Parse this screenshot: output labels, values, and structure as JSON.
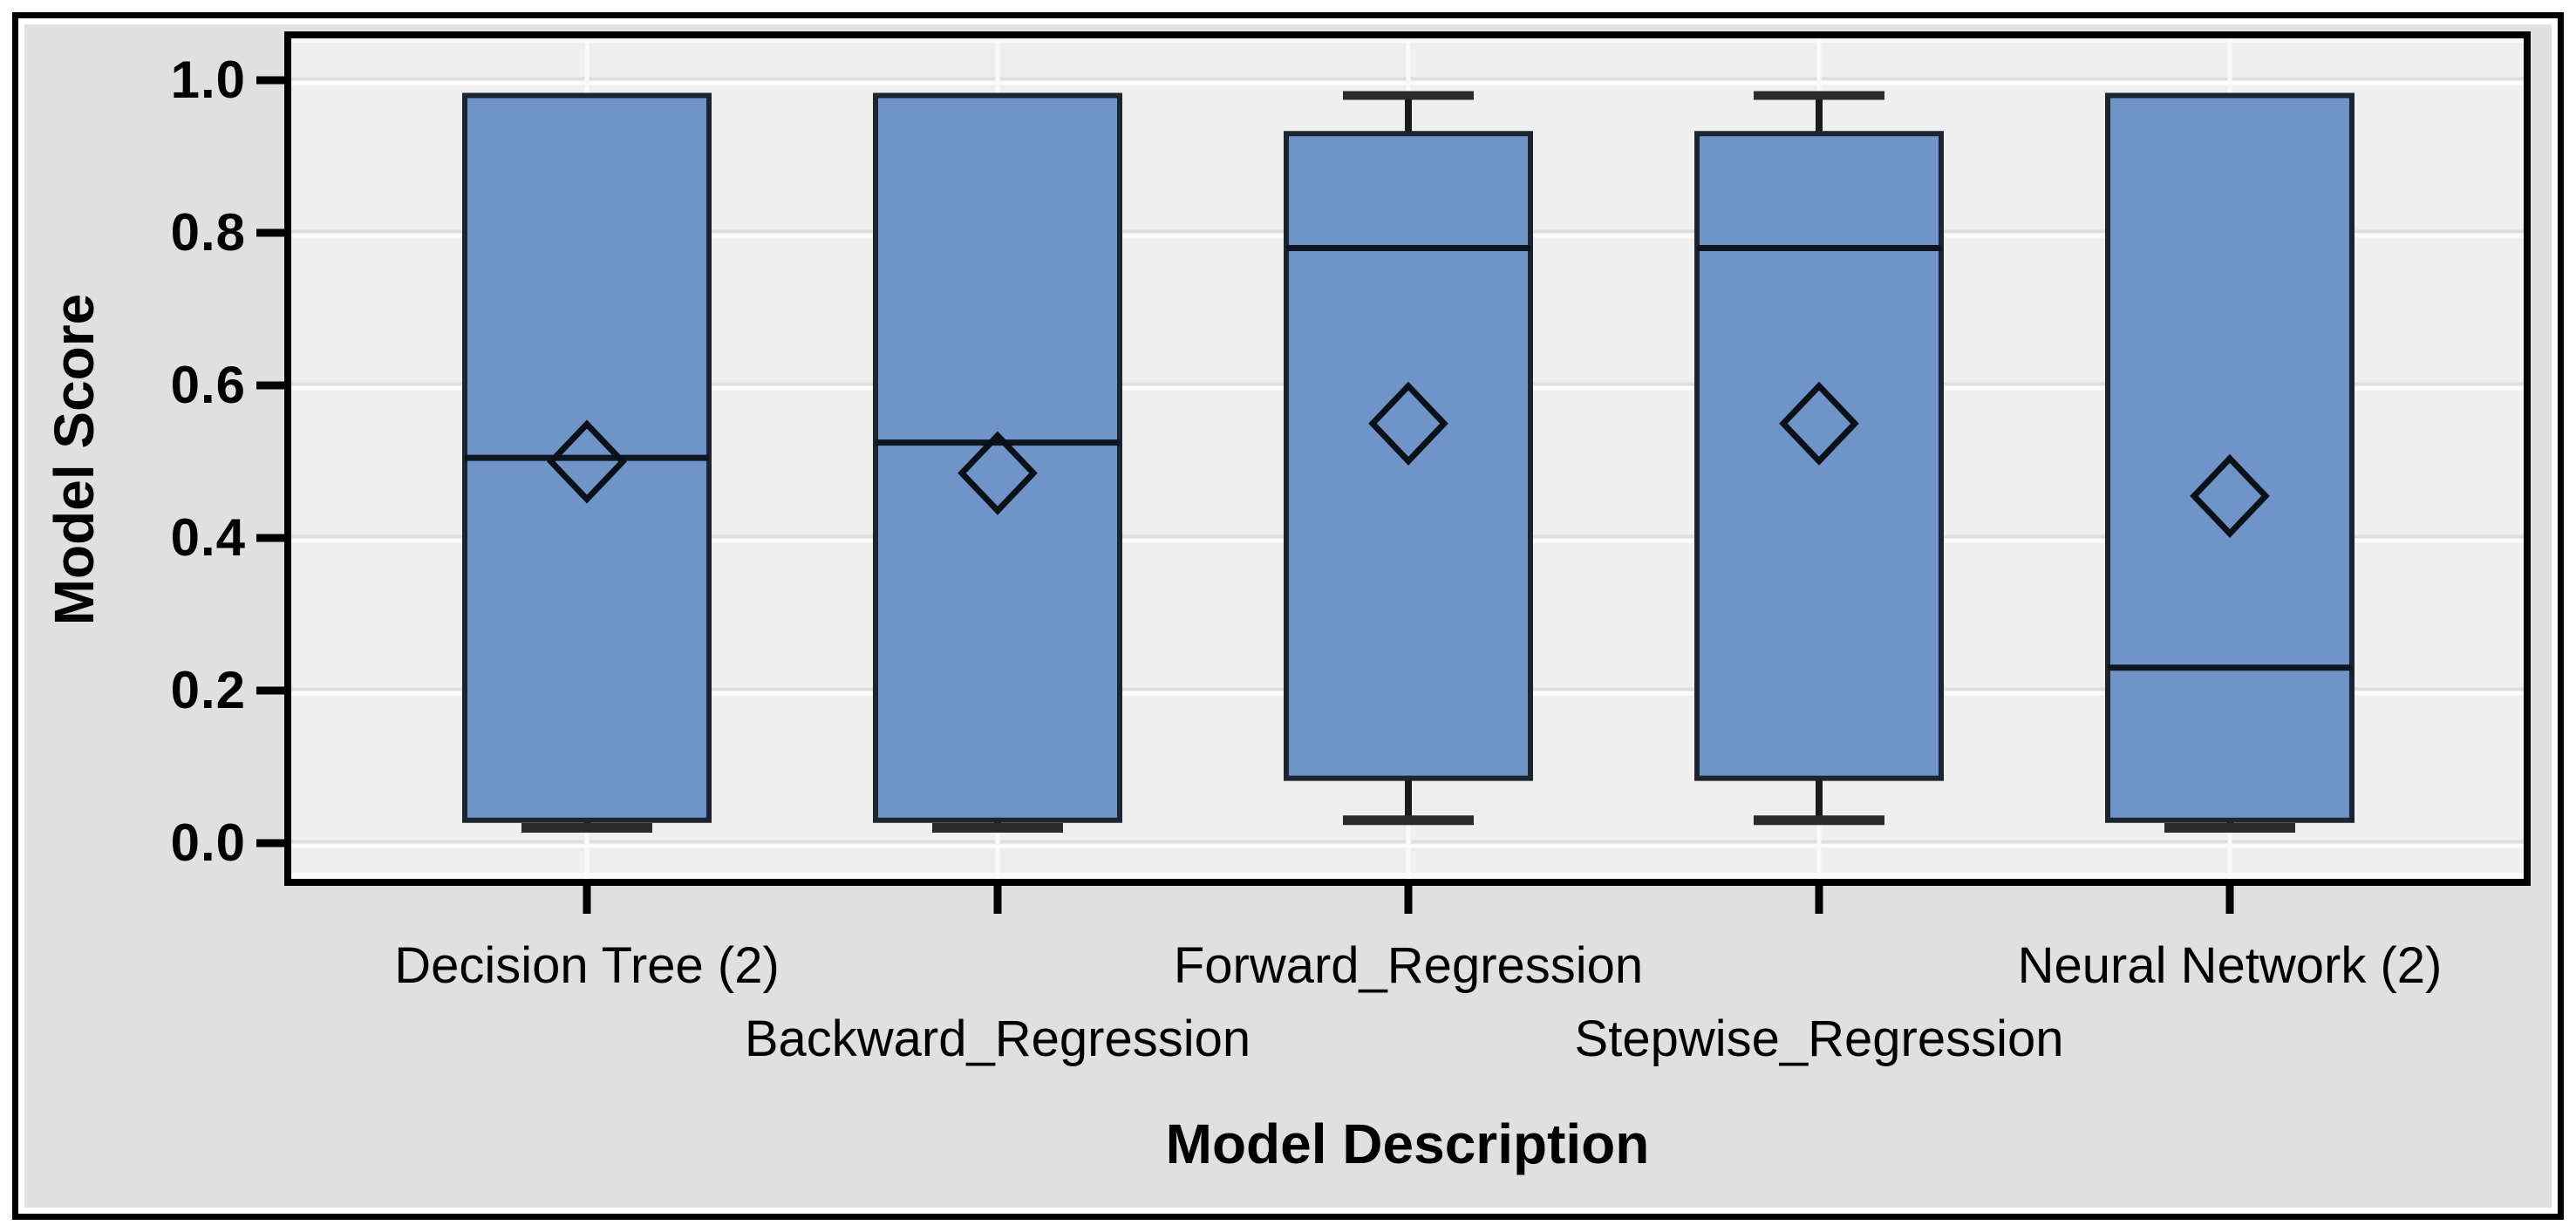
{
  "chart_data": {
    "type": "boxplot",
    "title": "",
    "xlabel": "Model Description",
    "ylabel": "Model Score",
    "ylim": [
      0,
      1
    ],
    "grid": true,
    "legend_position": "none",
    "mean_marker": "diamond",
    "y_ticks": [
      {
        "value": 0.0,
        "label": "0.0"
      },
      {
        "value": 0.2,
        "label": "0.2"
      },
      {
        "value": 0.4,
        "label": "0.4"
      },
      {
        "value": 0.6,
        "label": "0.6"
      },
      {
        "value": 0.8,
        "label": "0.8"
      },
      {
        "value": 1.0,
        "label": "1.0"
      }
    ],
    "categories": [
      "Decision Tree (2)",
      "Backward_Regression",
      "Forward_Regression",
      "Stepwise_Regression",
      "Neural Network (2)"
    ],
    "boxes": [
      {
        "label": "Decision Tree (2)",
        "whisker_low": 0.02,
        "q1": 0.03,
        "median": 0.505,
        "q3": 0.98,
        "whisker_high": 0.98,
        "mean": 0.5
      },
      {
        "label": "Backward_Regression",
        "whisker_low": 0.02,
        "q1": 0.03,
        "median": 0.525,
        "q3": 0.98,
        "whisker_high": 0.98,
        "mean": 0.485
      },
      {
        "label": "Forward_Regression",
        "whisker_low": 0.03,
        "q1": 0.085,
        "median": 0.78,
        "q3": 0.93,
        "whisker_high": 0.98,
        "mean": 0.55
      },
      {
        "label": "Stepwise_Regression",
        "whisker_low": 0.03,
        "q1": 0.085,
        "median": 0.78,
        "q3": 0.93,
        "whisker_high": 0.98,
        "mean": 0.55
      },
      {
        "label": "Neural Network (2)",
        "whisker_low": 0.02,
        "q1": 0.03,
        "median": 0.23,
        "q3": 0.98,
        "whisker_high": 0.98,
        "mean": 0.455
      }
    ],
    "colors": {
      "page_bg": "#ffffff",
      "outer_border": "#000000",
      "panel_bg": "#e0e0e0",
      "plot_bg": "#efefef",
      "grid_shadow": "#dedede",
      "grid_highlight": "#fcfcfc",
      "category_gridline": "#fafafa",
      "frame": "#000000",
      "box_fill": "#7093c8",
      "box_border": "#1c2430",
      "median_line": "#0d1520",
      "whisker": "#1a1a1a",
      "whisker_cap": "#2b2b2b",
      "mean_marker_stroke": "#0b1118",
      "tick": "#000000",
      "text": "#000000"
    }
  }
}
